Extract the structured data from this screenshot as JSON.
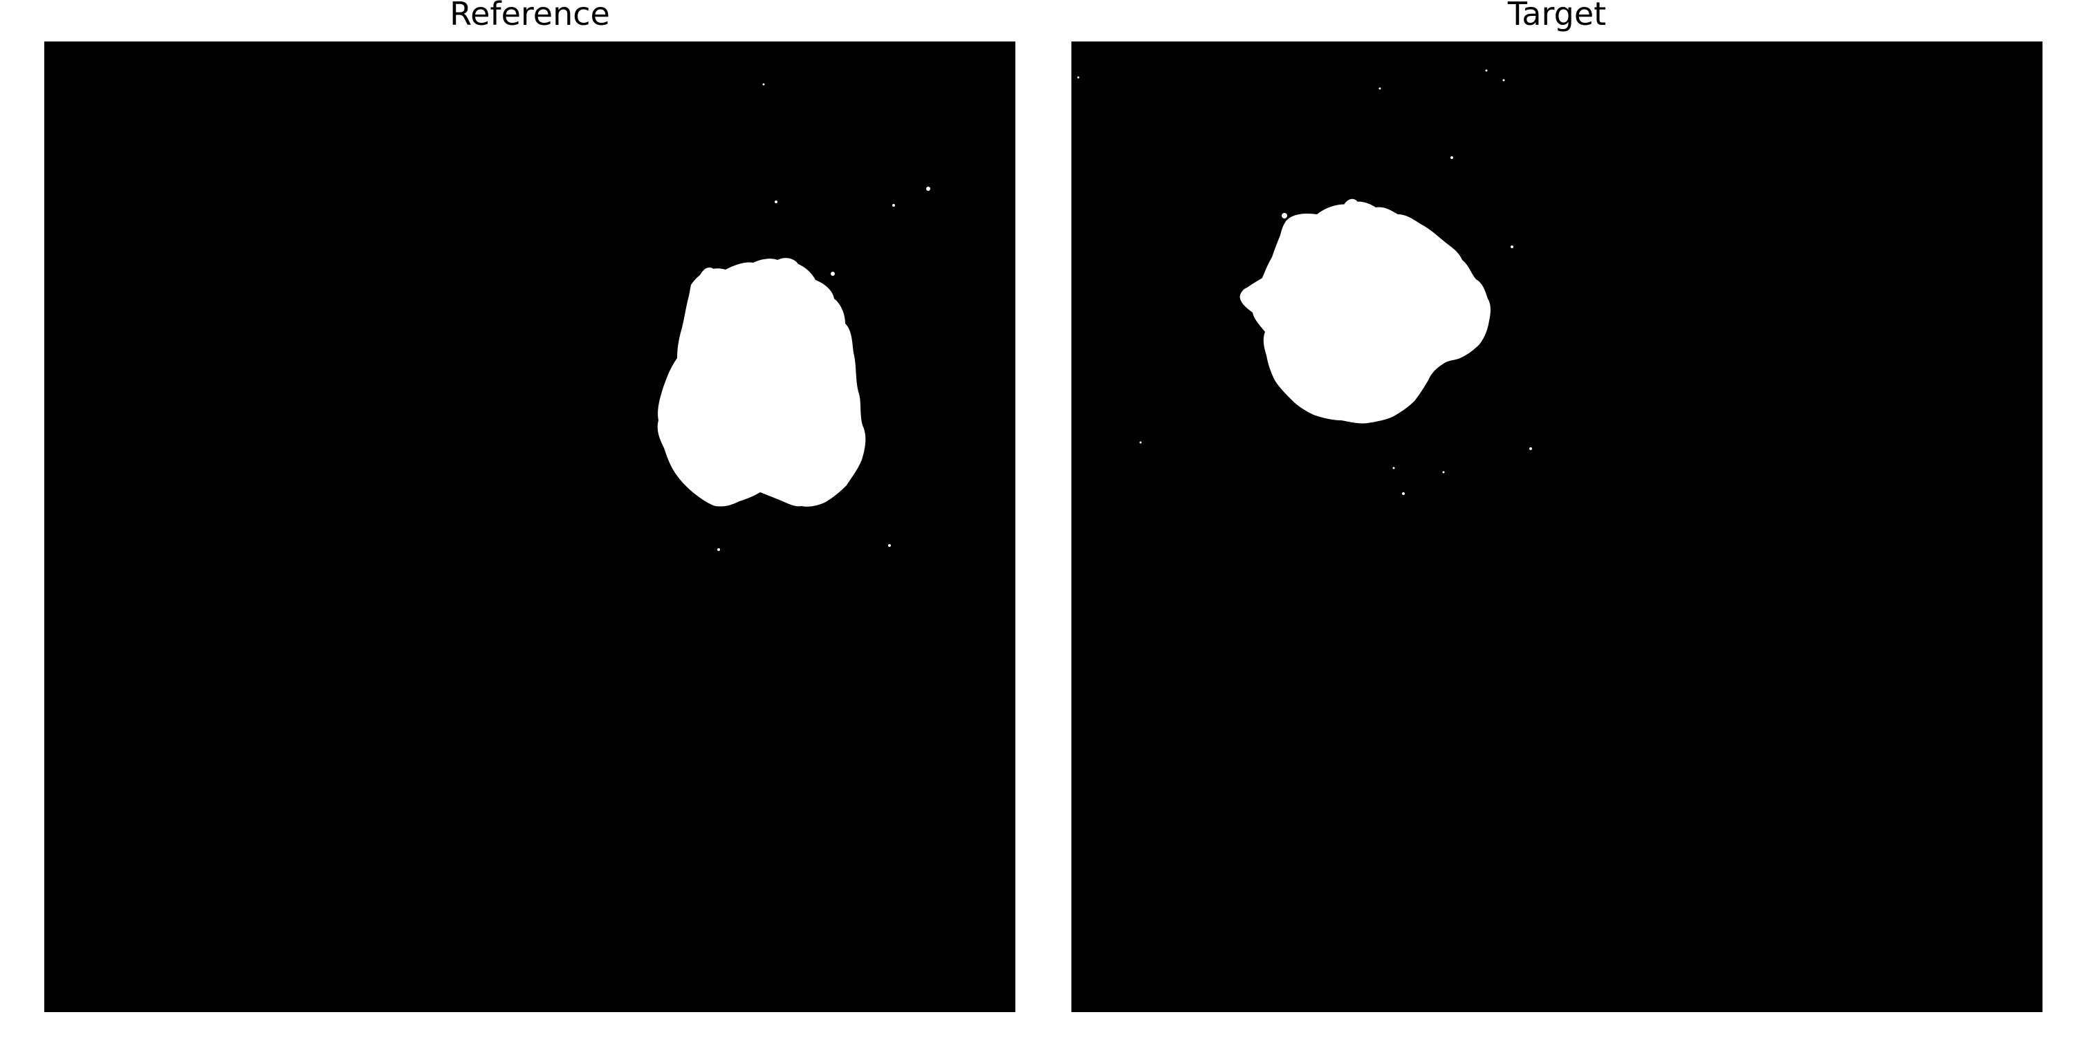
{
  "panels": {
    "left": {
      "title": "Reference"
    },
    "right": {
      "title": "Target"
    }
  },
  "colors": {
    "background": "#000000",
    "mask": "#ffffff",
    "page": "#ffffff"
  }
}
